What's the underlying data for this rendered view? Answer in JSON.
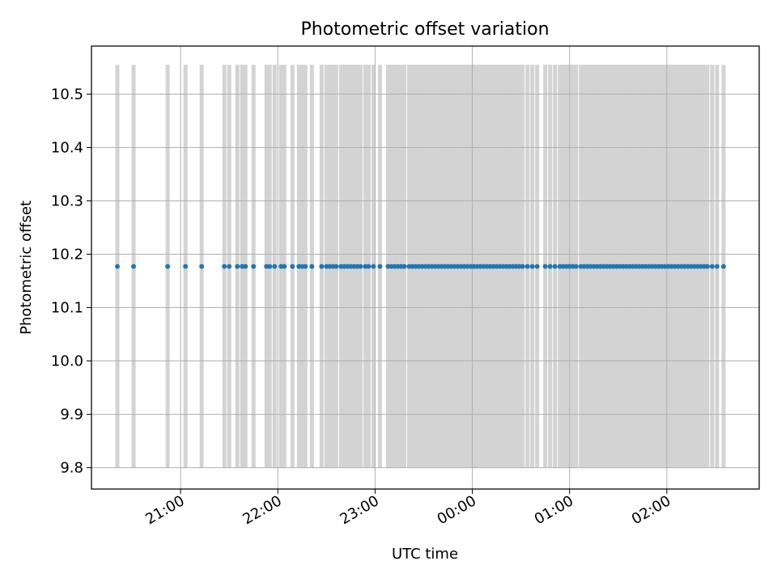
{
  "chart_data": {
    "type": "scatter",
    "title": "Photometric offset variation",
    "xlabel": "UTC time",
    "ylabel": "Photometric offset",
    "x_axis": {
      "kind": "time",
      "start": "20:05",
      "end": "02:57",
      "ticks": [
        "21:00",
        "22:00",
        "23:00",
        "00:00",
        "01:00",
        "02:00"
      ]
    },
    "y_axis": {
      "ylim": [
        9.76,
        10.59
      ],
      "ticks": [
        "9.8",
        "9.9",
        "10.0",
        "10.1",
        "10.2",
        "10.3",
        "10.4",
        "10.5"
      ]
    },
    "grid": true,
    "marker_color": "#1f77b4",
    "band_color": "#d3d3d3",
    "band_range": [
      9.8,
      10.555
    ],
    "constant_value": 10.177,
    "times": [
      "20:21",
      "20:31",
      "20:52",
      "21:03",
      "21:13",
      "21:27",
      "21:30",
      "21:35",
      "21:38",
      "21:40",
      "21:45",
      "21:53",
      "21:55",
      "21:58",
      "22:02",
      "22:04",
      "22:09",
      "22:13",
      "22:15",
      "22:17",
      "22:21",
      "22:27",
      "22:30",
      "22:32",
      "22:34",
      "22:36",
      "22:39",
      "22:41",
      "22:43",
      "22:45",
      "22:47",
      "22:49",
      "22:51",
      "22:54",
      "22:56",
      "22:59",
      "23:03",
      "23:08",
      "23:10",
      "23:12",
      "23:14",
      "23:16",
      "23:18",
      "23:21",
      "23:23",
      "23:25",
      "23:27",
      "23:29",
      "23:31",
      "23:33",
      "23:35",
      "23:37",
      "23:39",
      "23:41",
      "23:43",
      "23:45",
      "23:47",
      "23:49",
      "23:51",
      "23:53",
      "23:55",
      "23:57",
      "23:59",
      "00:01",
      "00:03",
      "00:05",
      "00:07",
      "00:09",
      "00:11",
      "00:13",
      "00:15",
      "00:17",
      "00:19",
      "00:21",
      "00:23",
      "00:25",
      "00:27",
      "00:29",
      "00:31",
      "00:34",
      "00:37",
      "00:40",
      "00:45",
      "00:48",
      "00:51",
      "00:54",
      "00:56",
      "00:58",
      "01:00",
      "01:02",
      "01:04",
      "01:07",
      "01:09",
      "01:11",
      "01:13",
      "01:15",
      "01:17",
      "01:19",
      "01:21",
      "01:23",
      "01:25",
      "01:27",
      "01:29",
      "01:31",
      "01:33",
      "01:35",
      "01:37",
      "01:39",
      "01:41",
      "01:43",
      "01:45",
      "01:47",
      "01:49",
      "01:51",
      "01:53",
      "01:55",
      "01:57",
      "01:59",
      "02:01",
      "02:03",
      "02:05",
      "02:07",
      "02:09",
      "02:11",
      "02:13",
      "02:15",
      "02:17",
      "02:19",
      "02:21",
      "02:23",
      "02:25",
      "02:28",
      "02:31",
      "02:35"
    ]
  }
}
